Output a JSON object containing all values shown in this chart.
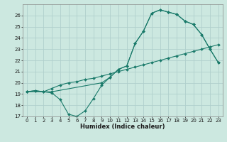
{
  "xlabel": "Humidex (Indice chaleur)",
  "ylabel": "",
  "bg_color": "#cce8e0",
  "grid_color": "#b0d0cc",
  "line_color": "#1a7a6a",
  "xlim": [
    -0.5,
    23.5
  ],
  "ylim": [
    17,
    27
  ],
  "yticks": [
    17,
    18,
    19,
    20,
    21,
    22,
    23,
    24,
    25,
    26
  ],
  "xticks": [
    0,
    1,
    2,
    3,
    4,
    5,
    6,
    7,
    8,
    9,
    10,
    11,
    12,
    13,
    14,
    15,
    16,
    17,
    18,
    19,
    20,
    21,
    22,
    23
  ],
  "line1_x": [
    0,
    1,
    2,
    3,
    4,
    5,
    6,
    7,
    8,
    9,
    10,
    11,
    12,
    13,
    14,
    15,
    16,
    17,
    18,
    19,
    20,
    21,
    22,
    23
  ],
  "line1_y": [
    19.2,
    19.3,
    19.2,
    19.1,
    18.5,
    17.2,
    17.0,
    17.5,
    18.6,
    19.8,
    20.5,
    21.2,
    21.5,
    23.5,
    24.6,
    26.2,
    26.5,
    26.3,
    26.1,
    25.5,
    25.2,
    24.3,
    23.0,
    21.8
  ],
  "line2_x": [
    0,
    1,
    2,
    3,
    4,
    5,
    6,
    7,
    8,
    9,
    10,
    11,
    12,
    13,
    14,
    15,
    16,
    17,
    18,
    19,
    20,
    21,
    22,
    23
  ],
  "line2_y": [
    19.2,
    19.3,
    19.2,
    19.5,
    19.8,
    20.0,
    20.1,
    20.3,
    20.4,
    20.6,
    20.8,
    21.0,
    21.2,
    21.4,
    21.6,
    21.8,
    22.0,
    22.2,
    22.4,
    22.6,
    22.8,
    23.0,
    23.2,
    23.4
  ],
  "line3_x": [
    0,
    3,
    9,
    10,
    11,
    12,
    13,
    14,
    15,
    16,
    17,
    18,
    19,
    20,
    21,
    22,
    23
  ],
  "line3_y": [
    19.2,
    19.2,
    20.0,
    20.5,
    21.2,
    21.5,
    23.5,
    24.6,
    26.2,
    26.5,
    26.3,
    26.1,
    25.5,
    25.2,
    24.3,
    23.0,
    21.8
  ],
  "tick_fontsize": 5.0,
  "xlabel_fontsize": 6.0,
  "marker_size": 2.0
}
